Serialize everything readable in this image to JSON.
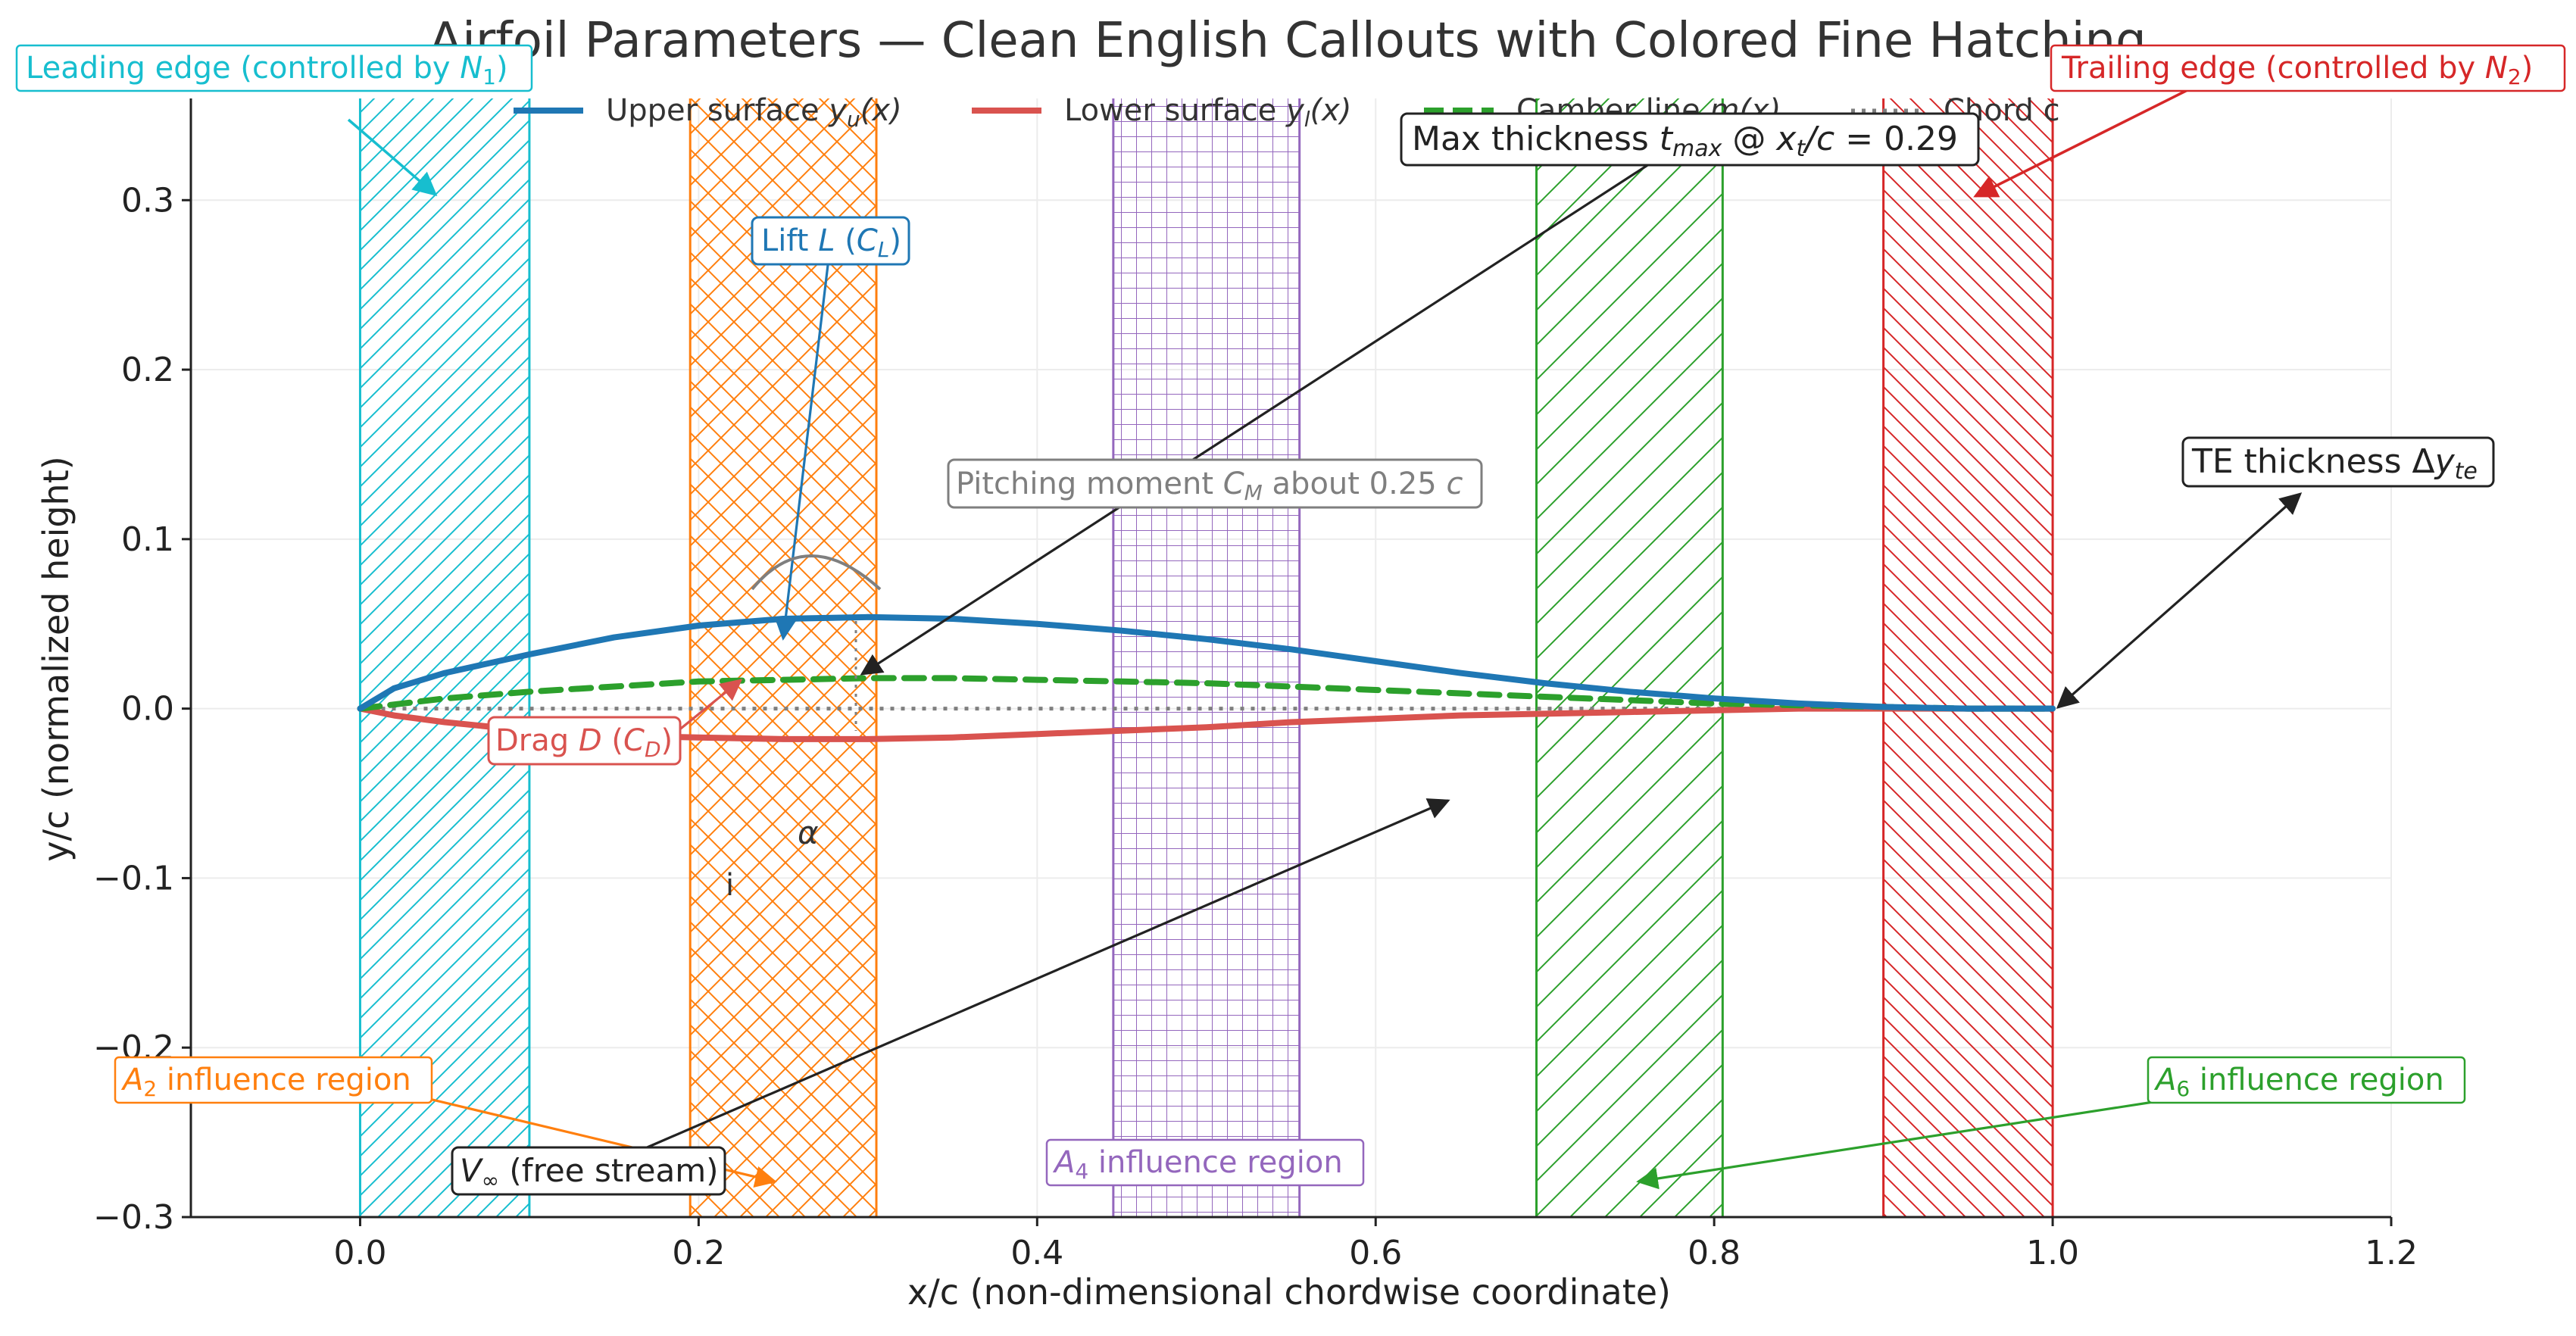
{
  "chart_data": {
    "type": "line",
    "title": "Airfoil Parameters — Clean English Callouts with Colored Fine Hatching",
    "xlabel": "x/c  (non-dimensional chordwise coordinate)",
    "ylabel": "y/c  (normalized height)",
    "xlim": [
      -0.1,
      1.2
    ],
    "ylim": [
      -0.3,
      0.36
    ],
    "x_ticks": [
      0.0,
      0.2,
      0.4,
      0.6,
      0.8,
      1.0,
      1.2
    ],
    "x_tick_labels": [
      "0.0",
      "0.2",
      "0.4",
      "0.6",
      "0.8",
      "1.0",
      "1.2"
    ],
    "y_ticks": [
      -0.3,
      -0.2,
      -0.1,
      0.0,
      0.1,
      0.2,
      0.3
    ],
    "y_tick_labels": [
      "−0.3",
      "−0.2",
      "−0.1",
      "0.0",
      "0.1",
      "0.2",
      "0.3"
    ],
    "grid": true,
    "legend_position": "top",
    "series": [
      {
        "name": "Upper surface y_u(x)",
        "color": "#1f77b4",
        "style": "solid",
        "x": [
          0.0,
          0.02,
          0.05,
          0.1,
          0.15,
          0.2,
          0.25,
          0.3,
          0.35,
          0.4,
          0.45,
          0.5,
          0.55,
          0.6,
          0.65,
          0.7,
          0.75,
          0.8,
          0.85,
          0.9,
          0.95,
          1.0
        ],
        "y": [
          0.0,
          0.012,
          0.021,
          0.032,
          0.042,
          0.049,
          0.053,
          0.054,
          0.053,
          0.05,
          0.046,
          0.041,
          0.035,
          0.028,
          0.021,
          0.015,
          0.01,
          0.006,
          0.003,
          0.001,
          0.0,
          0.0
        ]
      },
      {
        "name": "Lower surface y_l(x)",
        "color": "#d9534f",
        "style": "solid",
        "x": [
          0.0,
          0.02,
          0.05,
          0.1,
          0.15,
          0.2,
          0.25,
          0.3,
          0.35,
          0.4,
          0.45,
          0.5,
          0.55,
          0.6,
          0.65,
          0.7,
          0.75,
          0.8,
          0.85,
          0.9,
          0.95,
          1.0
        ],
        "y": [
          0.0,
          -0.004,
          -0.008,
          -0.013,
          -0.016,
          -0.017,
          -0.018,
          -0.018,
          -0.017,
          -0.015,
          -0.013,
          -0.011,
          -0.008,
          -0.006,
          -0.004,
          -0.003,
          -0.002,
          -0.001,
          0.0,
          0.0,
          0.0,
          0.0
        ]
      },
      {
        "name": "Camber line m(x)",
        "color": "#2ca02c",
        "style": "dashed",
        "x": [
          0.0,
          0.05,
          0.1,
          0.15,
          0.2,
          0.25,
          0.3,
          0.35,
          0.4,
          0.45,
          0.5,
          0.55,
          0.6,
          0.65,
          0.7,
          0.75,
          0.8,
          0.85,
          0.9,
          0.95,
          1.0
        ],
        "y": [
          0.0,
          0.006,
          0.01,
          0.013,
          0.016,
          0.017,
          0.018,
          0.018,
          0.017,
          0.016,
          0.015,
          0.013,
          0.011,
          0.009,
          0.007,
          0.005,
          0.003,
          0.002,
          0.001,
          0.0,
          0.0
        ]
      },
      {
        "name": "Chord c",
        "color": "#7f7f7f",
        "style": "dotted",
        "x": [
          0.0,
          1.0
        ],
        "y": [
          0.0,
          0.0
        ]
      }
    ],
    "regions": [
      {
        "x0": 0.0,
        "x1": 0.1,
        "color": "#17becf",
        "hatch": "forward"
      },
      {
        "x0": 0.195,
        "x1": 0.305,
        "color": "#ff7f0e",
        "hatch": "cross-diagonal"
      },
      {
        "x0": 0.445,
        "x1": 0.555,
        "color": "#9467bd",
        "hatch": "grid"
      },
      {
        "x0": 0.695,
        "x1": 0.805,
        "color": "#2ca02c",
        "hatch": "forward-wide"
      },
      {
        "x0": 0.9,
        "x1": 1.0,
        "color": "#d62728",
        "hatch": "backward"
      }
    ],
    "annotations": {
      "leading_edge": {
        "text": "Leading edge (controlled by N₁)",
        "color": "#17becf",
        "target": [
          0.045,
          0.305
        ]
      },
      "trailing_edge": {
        "text": "Trailing edge (controlled by N₂)",
        "color": "#d62728",
        "target": [
          0.955,
          0.302
        ]
      },
      "max_thickness": {
        "text": "Max thickness t_max @ x_t/c = 0.29",
        "color": "#222222",
        "target": [
          0.297,
          0.02
        ]
      },
      "lift": {
        "text": "Lift L (C_L)",
        "color": "#1f77b4",
        "target": [
          0.25,
          0.04
        ]
      },
      "pitching_moment": {
        "text": "Pitching moment C_M about 0.25 c",
        "color": "#7f7f7f"
      },
      "te_thickness": {
        "text": "TE thickness Δy_te",
        "color": "#222222",
        "target": [
          1.0,
          0.0
        ],
        "arrow_end": [
          1.15,
          0.128
        ]
      },
      "drag": {
        "text": "Drag D (C_D)",
        "color": "#d9534f",
        "target": [
          0.23,
          0.016
        ]
      },
      "alpha": {
        "text": "α"
      },
      "marker_i": {
        "text": "i"
      },
      "a2": {
        "text": "A₂ influence region",
        "color": "#ff7f0e",
        "target": [
          0.245,
          -0.278
        ]
      },
      "a4": {
        "text": "A₄ influence region",
        "color": "#9467bd"
      },
      "a6": {
        "text": "A₆ influence region",
        "color": "#2ca02c",
        "target": [
          0.755,
          -0.278
        ]
      },
      "v_inf": {
        "text": "V∞ (free stream)",
        "color": "#222222",
        "target": [
          0.645,
          -0.053
        ]
      }
    }
  }
}
